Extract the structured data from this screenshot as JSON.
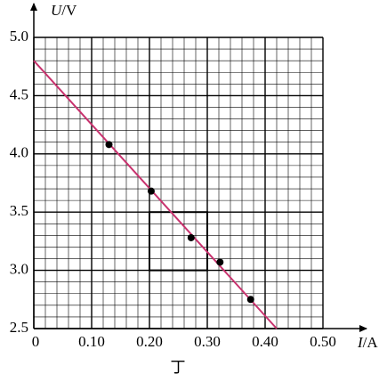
{
  "chart_data": {
    "type": "scatter",
    "x_label": "I/A",
    "y_label": "U/V",
    "caption": "丁",
    "x": [
      0.13,
      0.203,
      0.272,
      0.322,
      0.375
    ],
    "values": [
      4.08,
      3.68,
      3.28,
      3.07,
      2.75
    ],
    "color": "#000000",
    "fit_line": {
      "x": [
        0,
        0.42
      ],
      "values": [
        4.8,
        2.5
      ],
      "color": "#c8326e"
    },
    "highlight_box": {
      "xlim": [
        0.2,
        0.3
      ],
      "ylim": [
        3.0,
        3.5
      ]
    },
    "xlim": [
      0,
      0.5
    ],
    "ylim": [
      2.5,
      5.0
    ],
    "xticks": [
      0,
      {
        "value": 0.1,
        "label": "0.10"
      },
      {
        "value": 0.2,
        "label": "0.20"
      },
      {
        "value": 0.3,
        "label": "0.30"
      },
      {
        "value": 0.4,
        "label": "0.40"
      },
      {
        "value": 0.5,
        "label": "0.50"
      }
    ],
    "yticks": [
      2.5,
      {
        "value": 3,
        "label": "3.0"
      },
      3.5,
      {
        "value": 4,
        "label": "4.0"
      },
      4.5,
      {
        "value": 5,
        "label": "5.0"
      }
    ],
    "grid": true,
    "minor_grid": 5
  }
}
